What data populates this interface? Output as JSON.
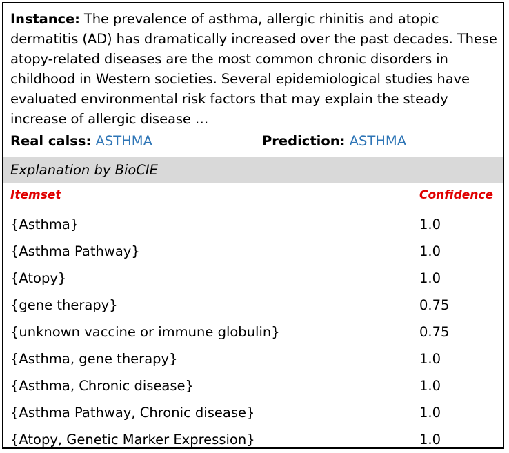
{
  "instance": {
    "label": "Instance:",
    "text": "The prevalence of asthma, allergic rhinitis and atopic dermatitis (AD) has dramatically increased over the past decades. These atopy-related diseases are the most common chronic disorders in childhood in Western societies. Several epidemiological studies have evaluated environmental risk factors that may explain the steady increase of allergic disease …"
  },
  "real_class": {
    "label": "Real calss:",
    "value": "ASTHMA"
  },
  "prediction": {
    "label": "Prediction:",
    "value": "ASTHMA"
  },
  "explanation_title": "Explanation by BioCIE",
  "table": {
    "headers": {
      "itemset": "Itemset",
      "confidence": "Confidence"
    },
    "rows": [
      {
        "itemset": "{Asthma}",
        "confidence": "1.0"
      },
      {
        "itemset": "{Asthma Pathway}",
        "confidence": "1.0"
      },
      {
        "itemset": "{Atopy}",
        "confidence": "1.0"
      },
      {
        "itemset": "{gene therapy}",
        "confidence": "0.75"
      },
      {
        "itemset": "{unknown vaccine or immune globulin}",
        "confidence": "0.75"
      },
      {
        "itemset": "{Asthma, gene therapy}",
        "confidence": "1.0"
      },
      {
        "itemset": "{Asthma, Chronic disease}",
        "confidence": "1.0"
      },
      {
        "itemset": "{Asthma Pathway, Chronic disease}",
        "confidence": "1.0"
      },
      {
        "itemset": "{Atopy, Genetic Marker Expression}",
        "confidence": "1.0"
      }
    ]
  },
  "colors": {
    "accent_blue": "#2e75b6",
    "header_red": "#e00000",
    "band_gray": "#d9d9d9"
  }
}
